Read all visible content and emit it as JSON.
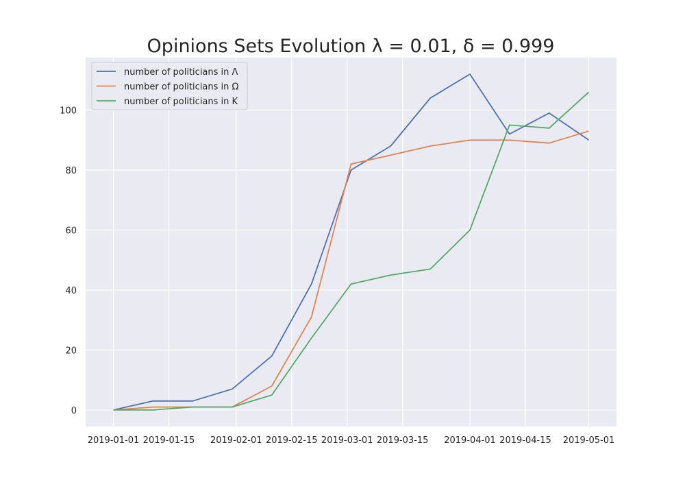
{
  "chart_data": {
    "type": "line",
    "title": "Opinions Sets Evolution λ = 0.01, δ = 0.999",
    "xlabel": "",
    "ylabel": "",
    "x": [
      "2019-01-01",
      "2019-01-11",
      "2019-01-21",
      "2019-01-31",
      "2019-02-10",
      "2019-02-20",
      "2019-03-02",
      "2019-03-12",
      "2019-03-22",
      "2019-04-01",
      "2019-04-11",
      "2019-04-21",
      "2019-05-01"
    ],
    "xlim": [
      "2018-12-25",
      "2019-05-08"
    ],
    "ylim": [
      -5.5,
      117.5
    ],
    "xticks": [
      "2019-01-01",
      "2019-01-15",
      "2019-02-01",
      "2019-02-15",
      "2019-03-01",
      "2019-03-15",
      "2019-04-01",
      "2019-04-15",
      "2019-05-01"
    ],
    "yticks": [
      0,
      20,
      40,
      60,
      80,
      100
    ],
    "grid": true,
    "legend_position": "top-left",
    "background": "#eaeaf2",
    "series": [
      {
        "name": "number of politicians in Λ",
        "color": "#4c72b0",
        "values": [
          0,
          3,
          3,
          7,
          18,
          42,
          80,
          88,
          104,
          112,
          92,
          99,
          90
        ]
      },
      {
        "name": "number of politicians in Ω",
        "color": "#dd8452",
        "values": [
          0,
          1,
          1,
          1,
          8,
          31,
          82,
          85,
          88,
          90,
          90,
          89,
          93
        ]
      },
      {
        "name": "number of politicians in K",
        "color": "#55a868",
        "values": [
          0,
          0,
          1,
          1,
          5,
          24,
          42,
          45,
          47,
          60,
          95,
          94,
          106
        ]
      }
    ]
  }
}
